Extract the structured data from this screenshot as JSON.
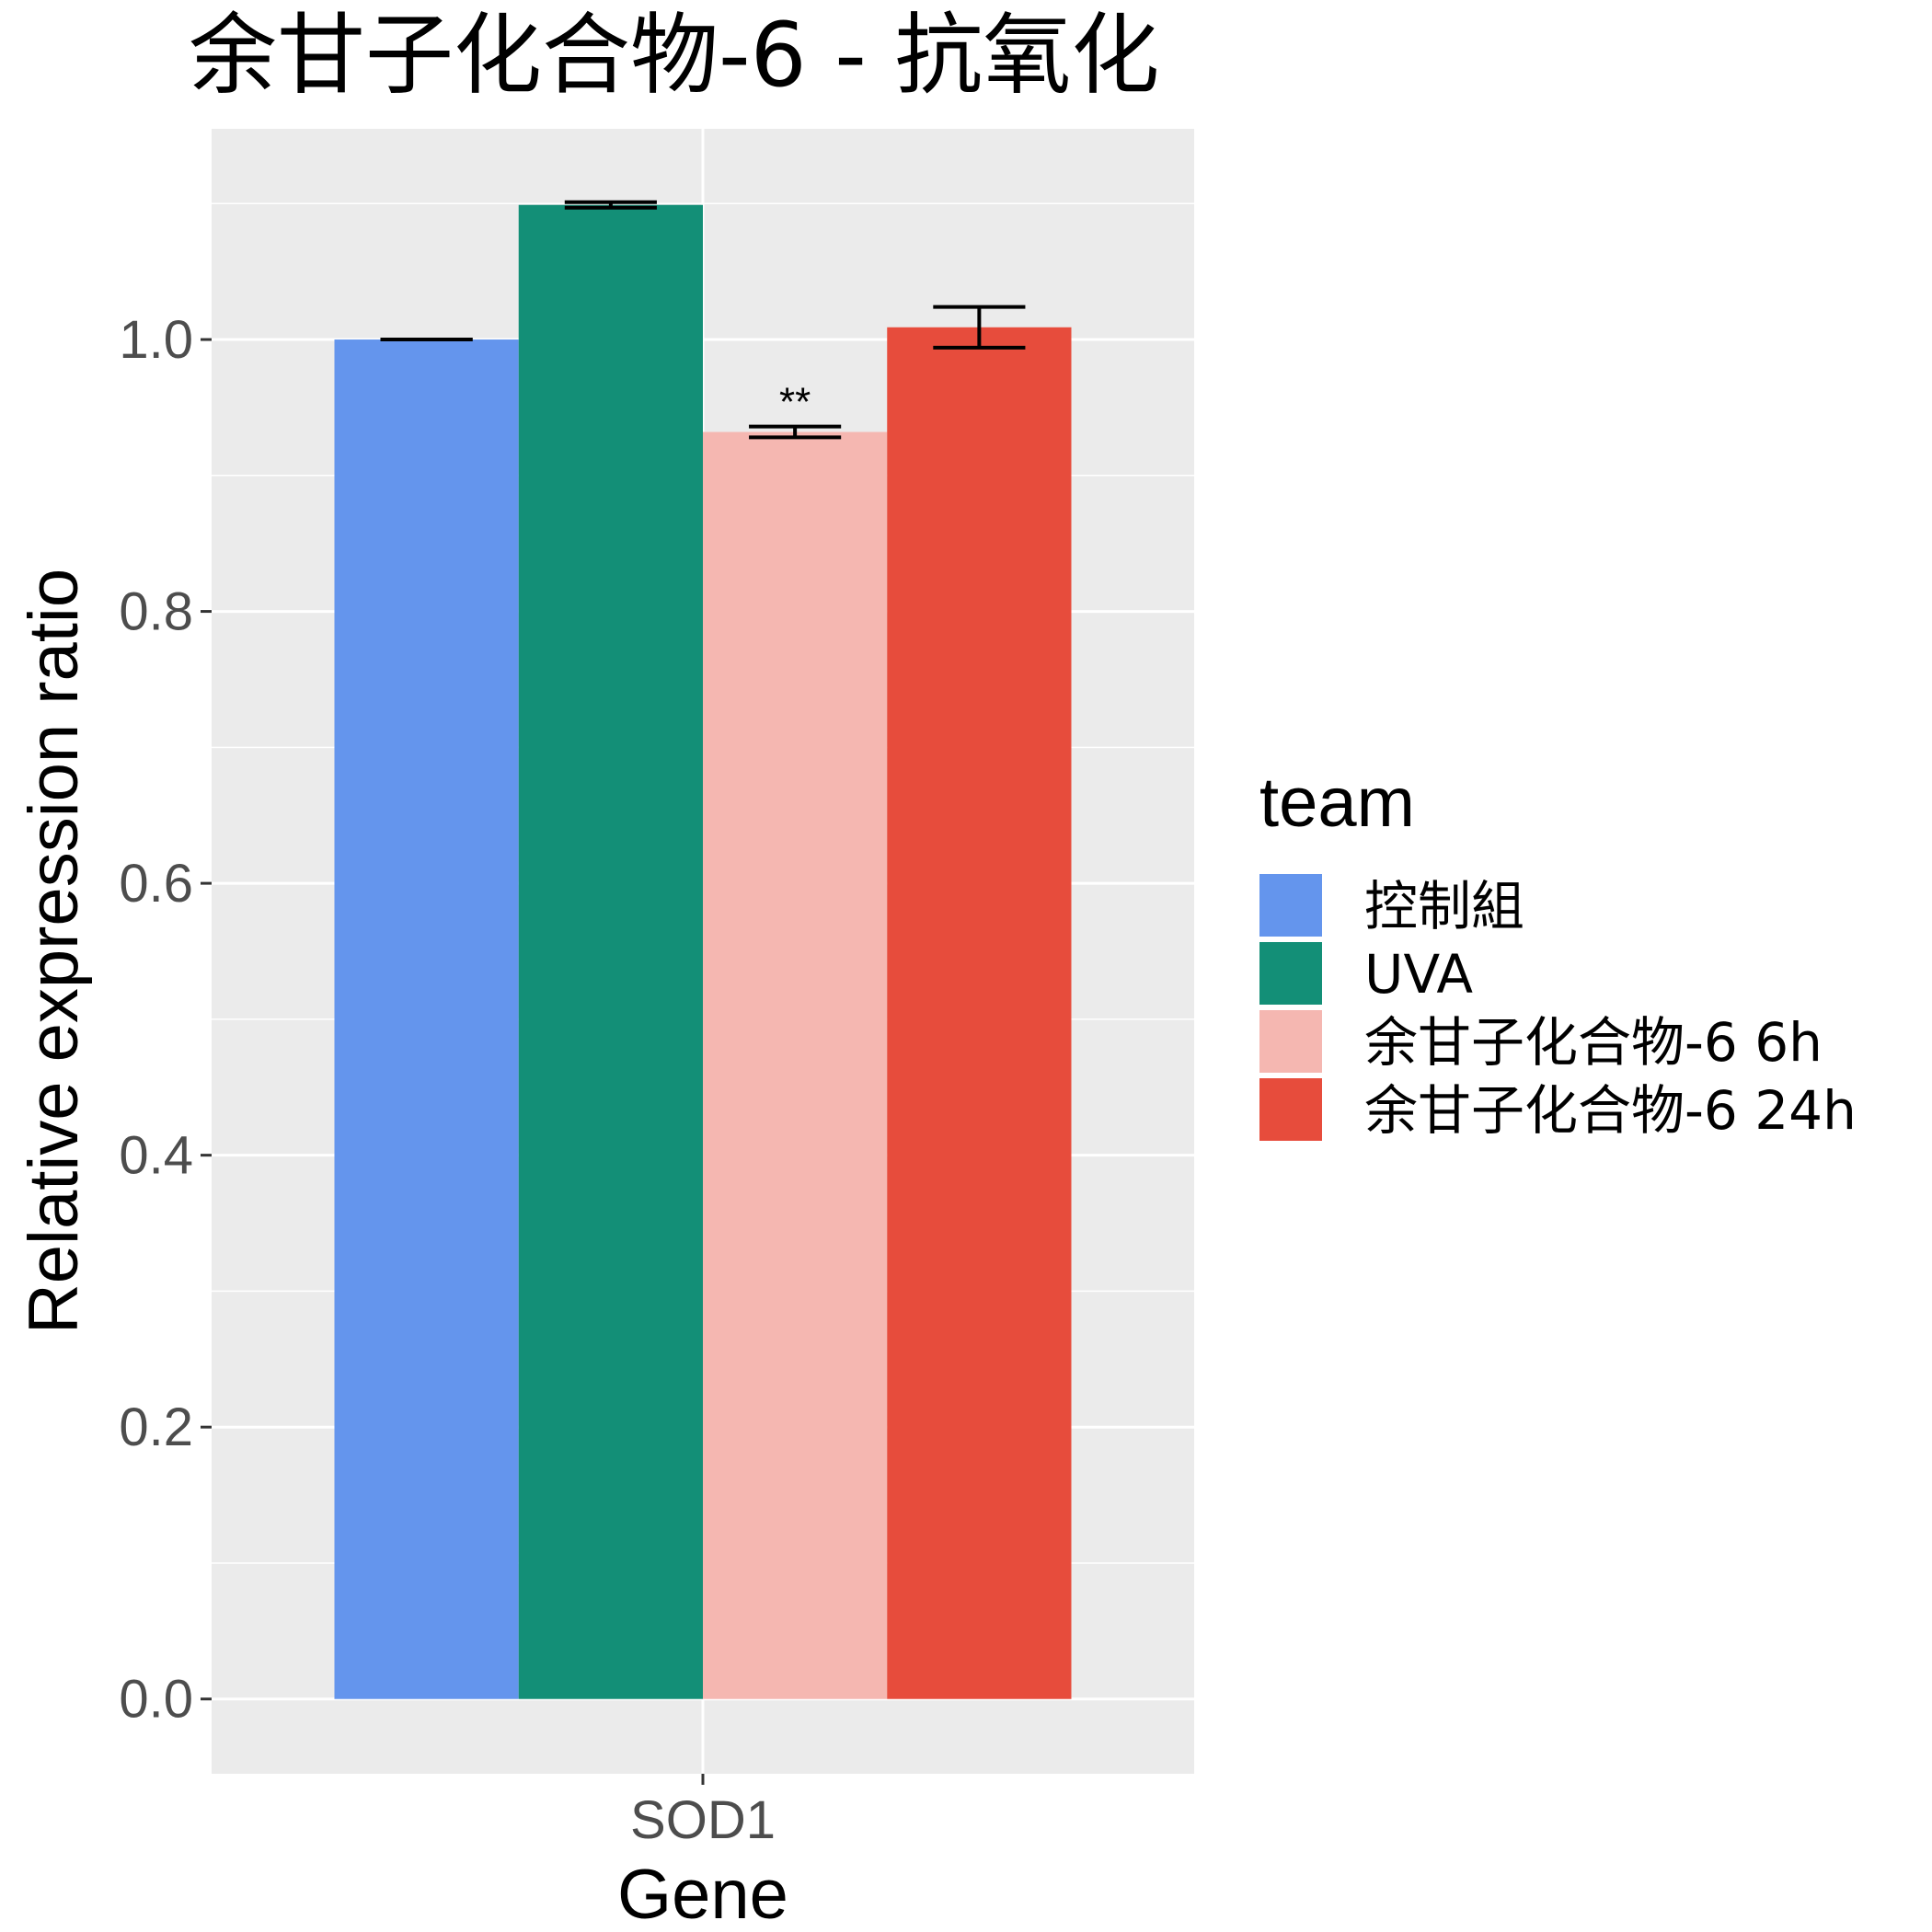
{
  "chart_data": {
    "type": "bar",
    "title": "余甘子化合物-6 - 抗氧化",
    "xlabel": "Gene",
    "ylabel": "Relative expression ratio",
    "categories": [
      "SOD1"
    ],
    "ylim": [
      -0.055,
      1.155
    ],
    "yticks": [
      "0.0",
      "0.2",
      "0.4",
      "0.6",
      "0.8",
      "1.0"
    ],
    "grid": true,
    "legend": {
      "title": "team",
      "position": "right"
    },
    "series": [
      {
        "name": "控制組",
        "color": "#6495ED",
        "values": [
          1.0
        ],
        "error": [
          0.0
        ],
        "annotation": ""
      },
      {
        "name": "UVA",
        "color": "#138F77",
        "values": [
          1.099
        ],
        "error": [
          0.002
        ],
        "annotation": ""
      },
      {
        "name": "余甘子化合物-6 6h",
        "color": "#F5B7B1",
        "values": [
          0.932
        ],
        "error": [
          0.004
        ],
        "annotation": "**"
      },
      {
        "name": "余甘子化合物-6 24h",
        "color": "#E74C3C",
        "values": [
          1.009
        ],
        "error": [
          0.015
        ],
        "annotation": ""
      }
    ]
  }
}
